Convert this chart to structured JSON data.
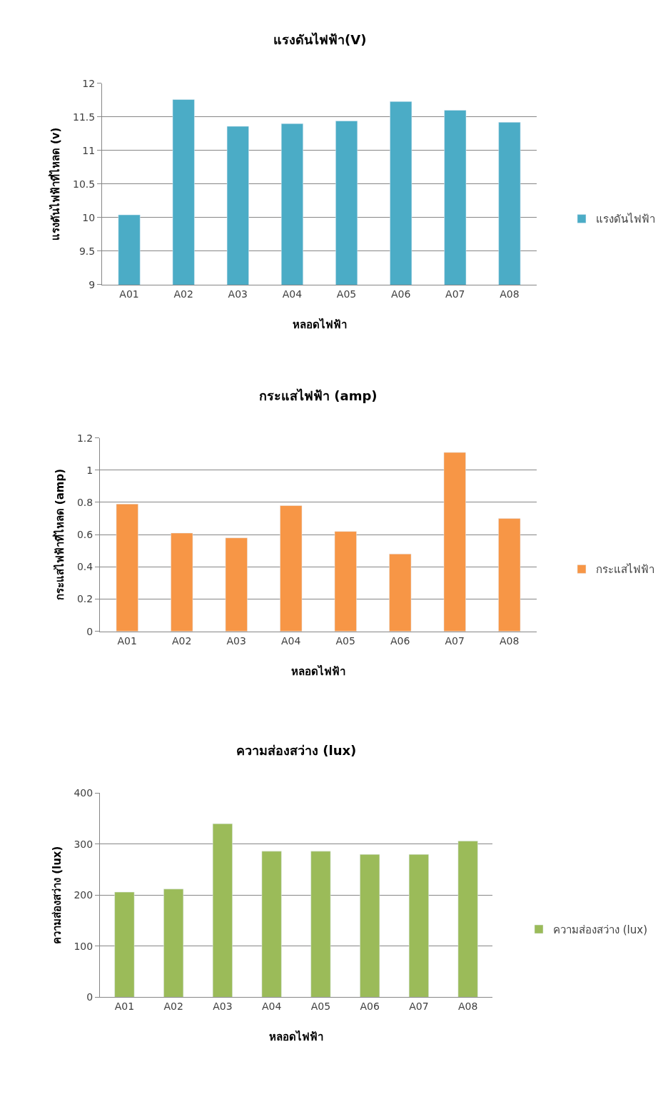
{
  "chart_data": [
    {
      "type": "bar",
      "title": "แรงดันไฟฟ้า(V)",
      "xlabel": "หลอดไฟฟ้า",
      "ylabel": "แรงดันไฟฟ้าที่ไหลด (v)",
      "categories": [
        "A01",
        "A02",
        "A03",
        "A04",
        "A05",
        "A06",
        "A07",
        "A08"
      ],
      "series": [
        {
          "name": "แรงดันไฟฟ้า",
          "color": "#4bacc6",
          "values": [
            10.04,
            11.76,
            11.36,
            11.4,
            11.44,
            11.73,
            11.6,
            11.42
          ]
        }
      ],
      "ylim": [
        9,
        12
      ],
      "yticks": [
        9,
        9.5,
        10,
        10.5,
        11,
        11.5,
        12
      ],
      "grid": "y",
      "legend": "right"
    },
    {
      "type": "bar",
      "title": "กระแสไฟฟ้า (amp)",
      "xlabel": "หลอดไฟฟ้า",
      "ylabel": "กระแสไฟฟ้าที่ไหลด (amp)",
      "categories": [
        "A01",
        "A02",
        "A03",
        "A04",
        "A05",
        "A06",
        "A07",
        "A08"
      ],
      "series": [
        {
          "name": "กระแสไฟฟ้า",
          "color": "#f79646",
          "values": [
            0.79,
            0.61,
            0.58,
            0.78,
            0.62,
            0.48,
            1.11,
            0.7
          ]
        }
      ],
      "ylim": [
        0,
        1.2
      ],
      "yticks": [
        0,
        0.2,
        0.4,
        0.6,
        0.8,
        1,
        1.2
      ],
      "grid": "y",
      "legend": "right"
    },
    {
      "type": "bar",
      "title": "ความส่องสว่าง (lux)",
      "xlabel": "หลอดไฟฟ้า",
      "ylabel": "ความส่องสว่าง (lux)",
      "categories": [
        "A01",
        "A02",
        "A03",
        "A04",
        "A05",
        "A06",
        "A07",
        "A08"
      ],
      "series": [
        {
          "name": "ความส่องสว่าง (lux)",
          "color": "#9bbb59",
          "values": [
            206,
            212,
            340,
            286,
            286,
            280,
            280,
            306
          ]
        }
      ],
      "ylim": [
        0,
        400
      ],
      "yticks": [
        0,
        100,
        200,
        300,
        400
      ],
      "grid": "y",
      "legend": "right"
    }
  ]
}
